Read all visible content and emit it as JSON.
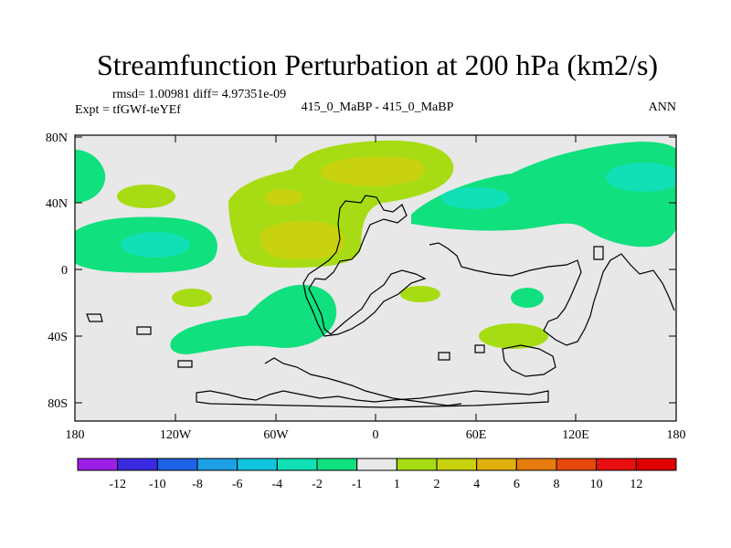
{
  "title": "Streamfunction Perturbation at 200 hPa (km2/s)",
  "stats": "rmsd= 1.00981 diff= 4.97351e-09",
  "left_label": "Expt = tfGWf-teYEf",
  "center_label": "415_0_MaBP - 415_0_MaBP",
  "right_label": "ANN",
  "colors": {
    "background_field": "#e8e8e8",
    "land_outline": "#000000"
  },
  "chart_data": {
    "type": "heatmap",
    "lat_ticks": [
      "80N",
      "40N",
      "0",
      "40S",
      "80S"
    ],
    "lon_ticks": [
      "180",
      "120W",
      "60W",
      "0",
      "60E",
      "120E",
      "180"
    ],
    "colorbar": {
      "labels": [
        "-12",
        "-10",
        "-8",
        "-6",
        "-4",
        "-2",
        "-1",
        "1",
        "2",
        "4",
        "6",
        "8",
        "10",
        "12"
      ],
      "colors": [
        "#9b1fe8",
        "#3b2be0",
        "#1e62e6",
        "#1ea0e6",
        "#11c4de",
        "#11dfb5",
        "#10e07e",
        "#e8e8e8",
        "#a7dc14",
        "#c8d20e",
        "#e0b00c",
        "#e67c0c",
        "#e6480c",
        "#e81010",
        "#e00000"
      ]
    },
    "levels": [
      -2,
      -1,
      1,
      2
    ]
  }
}
